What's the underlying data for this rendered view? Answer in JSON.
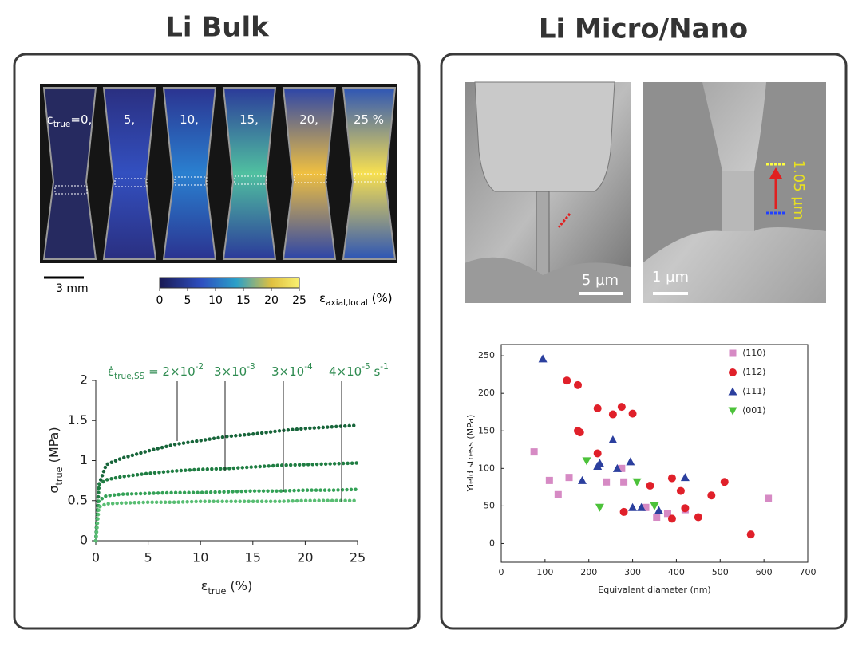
{
  "figure": {
    "titles": [
      "Li Bulk",
      "Li Micro/Nano"
    ],
    "strain_labels": [
      [
        {
          "text": "ε"
        },
        {
          "text": "true",
          "shift": "sub"
        },
        {
          "text": "=0,"
        }
      ],
      [
        {
          "text": "5,"
        }
      ],
      [
        {
          "text": "10,"
        }
      ],
      [
        {
          "text": "15,"
        }
      ],
      [
        {
          "text": "20,"
        }
      ],
      [
        {
          "text": "25 %"
        }
      ]
    ],
    "scale_bar": "3 mm",
    "colorbar": {
      "lim": [
        0,
        25
      ],
      "ticks": [
        0,
        5,
        10,
        15,
        20,
        25
      ],
      "label": [
        {
          "text": "ε"
        },
        {
          "text": "axial,local",
          "shift": "sub"
        },
        {
          "text": " (%)"
        }
      ]
    },
    "sem_scale_bars": [
      "5 µm",
      "1 µm"
    ],
    "sem_length": "1.05 µm"
  },
  "chart_data": [
    {
      "type": "line",
      "y_label": [
        {
          "text": "σ"
        },
        {
          "text": "true",
          "shift": "sub"
        },
        {
          "text": " (MPa)"
        }
      ],
      "x_label": [
        {
          "text": "ε"
        },
        {
          "text": "true",
          "shift": "sub"
        },
        {
          "text": " (%)"
        }
      ],
      "annotations": [
        [
          {
            "text": "ε̇"
          },
          {
            "text": "true,SS",
            "shift": "sub"
          },
          {
            "text": " = 2×10"
          },
          {
            "text": "-2",
            "shift": "super"
          }
        ],
        [
          {
            "text": "3×10"
          },
          {
            "text": "-3",
            "shift": "super"
          }
        ],
        [
          {
            "text": "3×10"
          },
          {
            "text": "-4",
            "shift": "super"
          }
        ],
        [
          {
            "text": "4×10"
          },
          {
            "text": "-5",
            "shift": "super"
          },
          {
            "text": " s"
          },
          {
            "text": "-1",
            "shift": "super"
          }
        ]
      ],
      "x": [
        0,
        0.3,
        1,
        2.5,
        5,
        7.5,
        10,
        12.5,
        15,
        17.5,
        20,
        22.5,
        25
      ],
      "series": [
        {
          "color": "#17653a",
          "values": [
            0,
            0.7,
            0.95,
            1.03,
            1.12,
            1.2,
            1.25,
            1.3,
            1.33,
            1.37,
            1.4,
            1.42,
            1.44
          ]
        },
        {
          "color": "#1f7d42",
          "values": [
            0,
            0.7,
            0.76,
            0.8,
            0.84,
            0.87,
            0.89,
            0.9,
            0.92,
            0.94,
            0.95,
            0.96,
            0.97
          ]
        },
        {
          "color": "#33a156",
          "values": [
            0,
            0.5,
            0.56,
            0.58,
            0.59,
            0.6,
            0.6,
            0.61,
            0.62,
            0.62,
            0.63,
            0.63,
            0.64
          ]
        },
        {
          "color": "#58bd72",
          "values": [
            0,
            0.42,
            0.46,
            0.47,
            0.48,
            0.48,
            0.49,
            0.49,
            0.49,
            0.49,
            0.5,
            0.5,
            0.5
          ]
        }
      ],
      "xlim": [
        0,
        25
      ],
      "xticks": [
        0,
        5,
        10,
        15,
        20,
        25
      ],
      "ylim": [
        0,
        2
      ],
      "yticks": [
        0,
        0.5,
        1,
        1.5,
        2
      ]
    },
    {
      "type": "scatter",
      "x_label": "Equivalent diameter (nm)",
      "y_label": "Yield stress (MPa)",
      "xlim": [
        0,
        700
      ],
      "xticks": [
        0,
        100,
        200,
        300,
        400,
        500,
        600,
        700
      ],
      "ylim": [
        -25,
        265
      ],
      "yticks": [
        0,
        50,
        100,
        150,
        200,
        250
      ],
      "series": [
        {
          "name": "⟨110⟩",
          "color": "#d68ac4",
          "marker": "square",
          "x": [
            75,
            110,
            130,
            155,
            240,
            275,
            280,
            330,
            355,
            380,
            420,
            610
          ],
          "values": [
            122,
            84,
            65,
            88,
            82,
            100,
            82,
            48,
            35,
            40,
            45,
            60
          ]
        },
        {
          "name": "⟨112⟩",
          "color": "#e0202a",
          "marker": "circle",
          "x": [
            150,
            175,
            175,
            180,
            220,
            220,
            255,
            275,
            300,
            280,
            340,
            390,
            390,
            410,
            420,
            450,
            480,
            510,
            570
          ],
          "values": [
            217,
            211,
            150,
            148,
            180,
            120,
            172,
            182,
            173,
            42,
            77,
            87,
            33,
            70,
            47,
            35,
            64,
            82,
            12
          ]
        },
        {
          "name": "⟨111⟩",
          "color": "#2b3f9e",
          "marker": "triangle",
          "x": [
            95,
            185,
            220,
            225,
            255,
            265,
            295,
            300,
            320,
            360,
            420
          ],
          "values": [
            246,
            84,
            103,
            107,
            138,
            100,
            109,
            48,
            48,
            44,
            88
          ]
        },
        {
          "name": "⟨001⟩",
          "color": "#4cc23a",
          "marker": "triangle-down",
          "x": [
            195,
            225,
            310,
            350
          ],
          "values": [
            110,
            48,
            82,
            50
          ]
        }
      ]
    }
  ]
}
